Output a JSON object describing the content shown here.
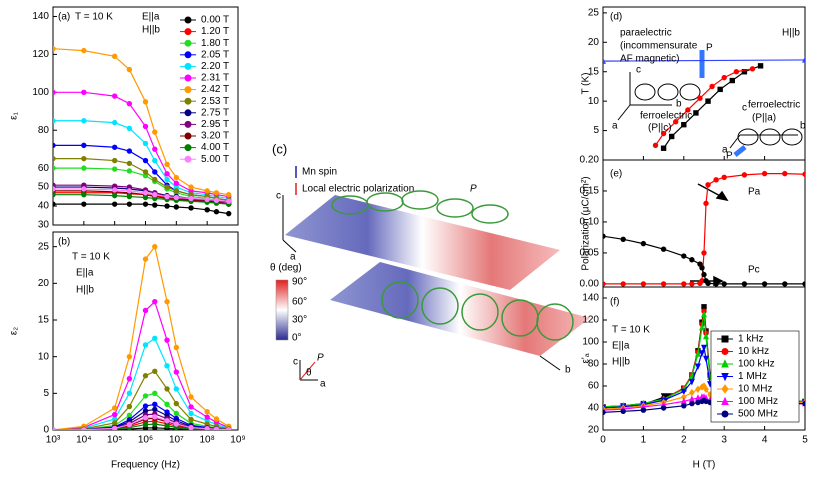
{
  "chart_data": [
    {
      "type": "line",
      "xscale": "log",
      "ylabel": "ε₁",
      "annotations": [
        "(a)",
        "T = 10 K",
        "E||a",
        "H||b"
      ],
      "legend": "upper-right",
      "x": [
        1000,
        10000,
        100000,
        300000,
        1000000,
        2000000,
        5000000,
        10000000,
        30000000,
        100000000,
        200000000,
        500000000
      ],
      "xlim": [
        1000,
        1000000000
      ],
      "xticks": [
        1000,
        10000,
        100000,
        1000000,
        10000000,
        100000000,
        1000000000
      ],
      "ylim": [
        30,
        145
      ],
      "yticks": [
        30,
        40,
        50,
        60,
        80,
        100,
        120,
        140
      ],
      "series": [
        {
          "name": "0.00 T",
          "color": "#000000",
          "values": [
            41,
            41,
            41,
            41,
            41,
            40.5,
            40,
            39.5,
            39,
            38,
            37,
            36
          ]
        },
        {
          "name": "1.20 T",
          "color": "#ff0000",
          "values": [
            47,
            47,
            47,
            46.5,
            46,
            45.5,
            44.5,
            44,
            43.5,
            43,
            42,
            41
          ]
        },
        {
          "name": "1.80 T",
          "color": "#22dd22",
          "values": [
            60,
            60,
            59.5,
            58.5,
            56,
            53,
            49,
            47,
            45,
            44,
            43,
            42
          ]
        },
        {
          "name": "2.05 T",
          "color": "#0000ff",
          "values": [
            72,
            72,
            71,
            69,
            64,
            58,
            51,
            48,
            46,
            45,
            44,
            43
          ]
        },
        {
          "name": "2.20 T",
          "color": "#00e5ff",
          "values": [
            85,
            85,
            84,
            81,
            73,
            64,
            54,
            50,
            47,
            46,
            45,
            44
          ]
        },
        {
          "name": "2.31 T",
          "color": "#ff00ff",
          "values": [
            100,
            100,
            98,
            94,
            82,
            70,
            57,
            52,
            48,
            47,
            46,
            45
          ]
        },
        {
          "name": "2.42 T",
          "color": "#ff9900",
          "values": [
            123,
            122,
            119,
            112,
            95,
            79,
            62,
            55,
            50,
            48,
            47,
            46
          ]
        },
        {
          "name": "2.53 T",
          "color": "#808000",
          "values": [
            65,
            65,
            64,
            62.5,
            58,
            54,
            50,
            48,
            46,
            45,
            44,
            43
          ]
        },
        {
          "name": "2.75 T",
          "color": "#000080",
          "values": [
            50,
            50,
            49.5,
            49,
            48,
            47,
            45.5,
            45,
            44,
            43,
            42.5,
            42
          ]
        },
        {
          "name": "2.95 T",
          "color": "#800080",
          "values": [
            51,
            51,
            50.5,
            50,
            48.5,
            47,
            45,
            44.5,
            43.5,
            43,
            42.5,
            42
          ]
        },
        {
          "name": "3.20 T",
          "color": "#800000",
          "values": [
            48,
            48,
            47.5,
            47,
            46,
            45,
            44,
            43.5,
            43,
            42.5,
            42,
            41
          ]
        },
        {
          "name": "4.00 T",
          "color": "#008000",
          "values": [
            46,
            46,
            45.5,
            45,
            44.5,
            44,
            43.5,
            43,
            42.5,
            42,
            41.5,
            41
          ]
        },
        {
          "name": "5.00 T",
          "color": "#ff80ff",
          "values": [
            49,
            49,
            48.5,
            48,
            47,
            46,
            45,
            44.5,
            44,
            43.5,
            43,
            42.5
          ]
        }
      ]
    },
    {
      "type": "line",
      "xscale": "log",
      "xlabel": "Frequency (Hz)",
      "ylabel": "ε₂",
      "annotations": [
        "(b)",
        "T = 10 K",
        "E||a",
        "H||b"
      ],
      "x": [
        1000,
        10000,
        100000,
        300000,
        1000000,
        2000000,
        5000000,
        10000000,
        30000000,
        100000000,
        200000000,
        500000000
      ],
      "xlim": [
        1000,
        1000000000
      ],
      "xticks": [
        {
          "value": 1000,
          "label": "10³"
        },
        {
          "value": 10000,
          "label": "10⁴"
        },
        {
          "value": 100000,
          "label": "10⁵"
        },
        {
          "value": 1000000,
          "label": "10⁶"
        },
        {
          "value": 10000000,
          "label": "10⁷"
        },
        {
          "value": 100000000,
          "label": "10⁸"
        },
        {
          "value": 1000000000,
          "label": "10⁹"
        }
      ],
      "ylim": [
        0,
        27
      ],
      "yticks": [
        0,
        5,
        10,
        15,
        20,
        25
      ],
      "series": [
        {
          "color": "#000000",
          "values": [
            0,
            0.01,
            0.04,
            0.12,
            0.28,
            0.3,
            0.21,
            0.14,
            0.05,
            0.03,
            0.02,
            0.01
          ]
        },
        {
          "color": "#ff0000",
          "values": [
            0,
            0.02,
            0.14,
            0.48,
            1.12,
            1.2,
            0.84,
            0.54,
            0.22,
            0.12,
            0.07,
            0.02
          ]
        },
        {
          "color": "#22dd22",
          "values": [
            0,
            0.1,
            0.6,
            2,
            4.65,
            5,
            3.5,
            2.25,
            0.9,
            0.5,
            0.3,
            0.1
          ]
        },
        {
          "color": "#0000ff",
          "values": [
            0,
            0.07,
            0.42,
            1.4,
            3.26,
            3.5,
            2.45,
            1.58,
            0.63,
            0.35,
            0.21,
            0.07
          ]
        },
        {
          "color": "#00e5ff",
          "values": [
            0,
            0.25,
            1.5,
            5,
            11.6,
            12.5,
            8.75,
            5.6,
            2.25,
            1.25,
            0.75,
            0.25
          ]
        },
        {
          "color": "#ff00ff",
          "values": [
            0,
            0.35,
            2.1,
            7,
            16.3,
            17.5,
            12.25,
            7.9,
            3.15,
            1.75,
            1.05,
            0.35
          ]
        },
        {
          "color": "#ff9900",
          "values": [
            0,
            0.5,
            3,
            10,
            23.3,
            25,
            17.5,
            11.25,
            4.5,
            2.5,
            1.5,
            0.5
          ]
        },
        {
          "color": "#808000",
          "values": [
            0,
            0.16,
            0.96,
            3.2,
            7.4,
            8,
            5.6,
            3.6,
            1.44,
            0.8,
            0.48,
            0.16
          ]
        },
        {
          "color": "#000080",
          "values": [
            0,
            0.06,
            0.34,
            1.12,
            2.6,
            2.8,
            1.96,
            1.26,
            0.5,
            0.28,
            0.17,
            0.06
          ]
        },
        {
          "color": "#800080",
          "values": [
            0,
            0.04,
            0.26,
            0.88,
            2.05,
            2.2,
            1.54,
            0.99,
            0.4,
            0.22,
            0.13,
            0.04
          ]
        },
        {
          "color": "#800000",
          "values": [
            0,
            0.03,
            0.19,
            0.64,
            1.49,
            1.6,
            1.12,
            0.72,
            0.29,
            0.16,
            0.1,
            0.03
          ]
        },
        {
          "color": "#008000",
          "values": [
            0,
            0.02,
            0.1,
            0.32,
            0.74,
            0.8,
            0.56,
            0.36,
            0.14,
            0.08,
            0.05,
            0.02
          ]
        },
        {
          "color": "#ff80ff",
          "values": [
            0,
            0.04,
            0.22,
            0.72,
            1.67,
            1.8,
            1.26,
            0.81,
            0.32,
            0.18,
            0.11,
            0.04
          ]
        }
      ]
    },
    {
      "type": "line",
      "ylabel": "T (K)",
      "annotations": [
        "(d)",
        "paraelectric",
        "(incommensurate",
        "AF magnetic)",
        "H||b",
        "ferroelectric",
        "(P||c)",
        "ferroelectric",
        "(P||a)",
        "P",
        "P",
        "c",
        "b",
        "a",
        "c",
        "b",
        "a"
      ],
      "xlim": [
        0,
        5
      ],
      "xticks": [
        0,
        1,
        2,
        3,
        4,
        5
      ],
      "ylim": [
        0,
        26
      ],
      "yticks": [
        5,
        10,
        15,
        20,
        25
      ],
      "series": [
        {
          "color": "#3344ff",
          "marker": "triangle",
          "x": [
            0,
            5
          ],
          "values": [
            16.8,
            17
          ]
        },
        {
          "color": "#000000",
          "marker": "square",
          "x": [
            1.5,
            1.7,
            2.0,
            2.3,
            2.6,
            2.9,
            3.2,
            3.5,
            3.9
          ],
          "values": [
            2,
            4,
            6,
            8,
            10,
            12,
            13.5,
            15,
            16
          ]
        },
        {
          "color": "#ff0000",
          "marker": "circle",
          "x": [
            1.3,
            1.5,
            1.8,
            2.1,
            2.4,
            2.7,
            3.0,
            3.3,
            3.7
          ],
          "values": [
            2.5,
            4.5,
            6.5,
            8.5,
            10.5,
            12.5,
            14,
            15,
            15.5
          ]
        }
      ]
    },
    {
      "type": "line",
      "ylabel": "Polarization (μC/cm²)",
      "annotations": [
        "(e)"
      ],
      "legend": "inline",
      "x": [
        0,
        0.5,
        1,
        1.5,
        2,
        2.2,
        2.4,
        2.45,
        2.5,
        2.55,
        2.6,
        2.8,
        3,
        3.5,
        4,
        4.5,
        5
      ],
      "xlim": [
        0,
        5
      ],
      "xticks": [
        0,
        1,
        2,
        3,
        4,
        5
      ],
      "ylim": [
        -0.005,
        0.2
      ],
      "yticks": [
        {
          "value": 0,
          "label": "0.00"
        },
        0.05,
        {
          "value": 0.1,
          "label": "0.10"
        },
        0.15,
        {
          "value": 0.2,
          "label": "0.20"
        }
      ],
      "series": [
        {
          "name": "Pa",
          "color": "#ff0000",
          "values": [
            0,
            0,
            0,
            0,
            0,
            0,
            0.001,
            0.005,
            0.05,
            0.13,
            0.16,
            0.168,
            0.172,
            0.176,
            0.178,
            0.178,
            0.177
          ]
        },
        {
          "name": "Pc",
          "color": "#000000",
          "values": [
            0.077,
            0.072,
            0.065,
            0.056,
            0.045,
            0.039,
            0.032,
            0.026,
            0.015,
            0.005,
            0.001,
            0,
            0,
            0,
            0,
            0,
            0
          ]
        }
      ]
    },
    {
      "type": "line",
      "xlabel": "H (T)",
      "ylabel": "ε'ₐ",
      "annotations": [
        "(f)",
        "T = 10 K",
        "E||a",
        "H||b"
      ],
      "legend": "lower-right",
      "x": [
        0,
        0.5,
        1,
        1.5,
        2,
        2.2,
        2.35,
        2.45,
        2.5,
        2.55,
        2.65,
        2.8,
        3,
        4,
        5
      ],
      "xlim": [
        0,
        5
      ],
      "xticks": [
        0,
        1,
        2,
        3,
        4,
        5
      ],
      "ylim": [
        20,
        150
      ],
      "yticks": [
        20,
        40,
        60,
        80,
        100,
        120,
        140
      ],
      "series": [
        {
          "name": "1 kHz",
          "color": "#000000",
          "marker": "square",
          "values": [
            41,
            42,
            44,
            48,
            58,
            70,
            92,
            118,
            132,
            110,
            70,
            55,
            50,
            47,
            46
          ]
        },
        {
          "name": "10 kHz",
          "color": "#ff0000",
          "marker": "circle",
          "values": [
            41,
            42,
            44,
            48,
            58,
            70,
            91,
            116,
            128,
            108,
            69,
            55,
            50,
            47,
            46
          ]
        },
        {
          "name": "100 kHz",
          "color": "#00cc00",
          "marker": "triangle",
          "values": [
            41,
            42,
            44,
            48,
            57,
            69,
            89,
            113,
            125,
            105,
            68,
            54,
            50,
            47,
            46
          ]
        },
        {
          "name": "1 MHz",
          "color": "#0000ff",
          "marker": "triangle-down",
          "values": [
            40,
            41,
            43,
            47,
            55,
            64,
            78,
            90,
            95,
            85,
            62,
            52,
            49,
            46,
            45
          ]
        },
        {
          "name": "10 MHz",
          "color": "#ff9900",
          "marker": "diamond",
          "values": [
            39,
            40,
            42,
            45,
            50,
            54,
            57,
            59,
            60,
            57,
            52,
            48,
            47,
            45,
            45
          ]
        },
        {
          "name": "100 MHz",
          "color": "#ff00ff",
          "marker": "triangle",
          "values": [
            38,
            39,
            41,
            43,
            46,
            48,
            49,
            50,
            50,
            49,
            47,
            46,
            45,
            44,
            44
          ]
        },
        {
          "name": "500 MHz",
          "color": "#000080",
          "marker": "circle",
          "values": [
            36,
            37,
            38,
            40,
            42,
            44,
            45,
            46,
            47,
            46,
            45,
            44,
            44,
            44,
            44
          ]
        }
      ]
    }
  ],
  "illustration": {
    "panel": "(c)",
    "legend": [
      "Mn spin",
      "Local electric polarization"
    ],
    "p": "P",
    "colorbar_title": "θ (deg)",
    "colorbar_ticks": [
      "90°",
      "60°",
      "30°",
      "0°"
    ],
    "axes": [
      "c",
      "a",
      "b"
    ],
    "inset_axes": [
      "c",
      "P",
      "θ",
      "a"
    ]
  }
}
